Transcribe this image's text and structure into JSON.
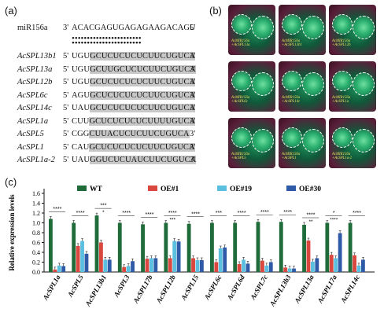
{
  "panels": {
    "a": "(a)",
    "b": "(b)",
    "c": "(c)"
  },
  "mirna": {
    "name": "miR156a",
    "p3": "3'",
    "seq": "ACACGAGUGAGAGAAGACAGU",
    "p5": "5'"
  },
  "alignments": [
    {
      "name": "AcSPL13b1",
      "seq": "UGUGCUCUCUCUCUUCUGUCA"
    },
    {
      "name": "AcSPL13a",
      "seq": "UGUGCUUGCUCUCUUCUGUCA"
    },
    {
      "name": "AcSPL12b",
      "seq": "UGUGCUCUCUCUCUUCUGUCA"
    },
    {
      "name": "AcSPL6c",
      "seq": "AGUGCUCUCUCUCUUCUGUCA"
    },
    {
      "name": "AcSPL14c",
      "seq": "UAUGCUCUCUCUCUUCUGUCA"
    },
    {
      "name": "AcSPL1a",
      "seq": "CUUGCUCUCUCUCUUUUGUCA"
    },
    {
      "name": "AcSPL5",
      "seq": "CGGCUUACUCUCUUCUGUCA"
    },
    {
      "name": "AcSPL1",
      "seq": "CAUGCUCUCUCUCUUCUGUCA"
    },
    {
      "name": "AcSPL1a-2",
      "seq": "UAUGGUCUCUAUCUUCUGUCA"
    }
  ],
  "alignment_primes": {
    "left": "5'",
    "right": "3'"
  },
  "leaves": [
    [
      "AcMIR156a\n+AcSPL13a",
      "AcMIR156a\n+AcSPL13b1",
      "AcMIR156a\n+AcSPL12b"
    ],
    [
      "AcMIR156a\n+AcSPL6c",
      "AcMIR156a\n+AcSPL14c",
      "AcMIR156a\n+AcSPL1a"
    ],
    [
      "AcMIR156a\n+AcSPL5",
      "AcMIR156a\n+AcSPL1",
      "AcMIR156a\n+AcSPL1a-2"
    ]
  ],
  "colors": {
    "WT": "#1f6b3a",
    "OE1": "#d9473f",
    "OE19": "#5bbfe0",
    "OE30": "#2f5aa8"
  },
  "chart_data": {
    "type": "bar",
    "ylabel": "Relative expression levels",
    "ylim": [
      0,
      1.6
    ],
    "yticks": [
      "0.0",
      "0.2",
      "0.4",
      "0.6",
      "0.8",
      "1.0",
      "1.2",
      "1.4",
      "1.6"
    ],
    "categories": [
      "AcSPL1a",
      "AcSPL5",
      "AcSPL13b1",
      "AcSPL3",
      "AcSPL17b",
      "AcSPL12b",
      "AcSPL15",
      "AcSPL6c",
      "AcSPL6d",
      "AcSPL7c",
      "AcSPL13b3",
      "AcSPL13a",
      "AcSPL17a",
      "AcSPL14c"
    ],
    "series": [
      {
        "name": "WT",
        "values": [
          1.08,
          1.0,
          1.15,
          1.0,
          0.97,
          1.0,
          0.98,
          1.0,
          1.0,
          1.02,
          1.02,
          0.96,
          1.0,
          1.0
        ]
      },
      {
        "name": "OE#1",
        "values": [
          0.05,
          0.53,
          0.6,
          0.1,
          0.27,
          0.28,
          0.28,
          0.2,
          0.16,
          0.23,
          0.09,
          0.64,
          0.35,
          0.34
        ]
      },
      {
        "name": "OE#19",
        "values": [
          0.13,
          0.63,
          0.25,
          0.12,
          0.28,
          0.63,
          0.24,
          0.48,
          0.25,
          0.13,
          0.07,
          0.21,
          0.28,
          0.13
        ]
      },
      {
        "name": "OE#30",
        "values": [
          0.12,
          0.37,
          0.25,
          0.22,
          0.28,
          0.62,
          0.24,
          0.5,
          0.17,
          0.2,
          0.07,
          0.28,
          0.79,
          0.25
        ]
      }
    ],
    "significance": [
      "****",
      "****",
      "***",
      "****",
      "****",
      "****",
      "****",
      "***",
      "****",
      "****",
      "****",
      "****",
      "*",
      "****"
    ],
    "sub_significance": [
      "",
      "",
      "*",
      "",
      "",
      "***",
      "",
      "",
      "",
      "",
      "",
      "**",
      "****",
      ""
    ],
    "legend": [
      "WT",
      "OE#1",
      "OE#19",
      "OE#30"
    ],
    "legend_position": "top"
  }
}
